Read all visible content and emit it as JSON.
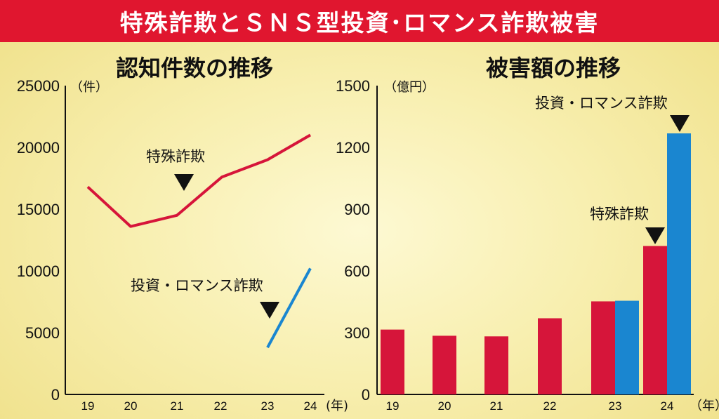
{
  "title": "特殊詐欺とＳＮＳ型投資･ロマンス詐欺被害",
  "chart_data": [
    {
      "type": "line",
      "title": "認知件数の推移",
      "y_unit": "（件）",
      "x_unit": "(年)",
      "x": [
        "19",
        "20",
        "21",
        "22",
        "23",
        "24"
      ],
      "ylim": [
        0,
        25000
      ],
      "yticks": [
        "25000",
        "20000",
        "15000",
        "10000",
        "5000",
        "0"
      ],
      "series": [
        {
          "name": "特殊詐欺",
          "color": "#d6153a",
          "values": [
            16800,
            13600,
            14500,
            17600,
            19000,
            21000
          ]
        },
        {
          "name": "投資・ロマンス詐欺",
          "color": "#1a86d0",
          "values": [
            null,
            null,
            null,
            null,
            3800,
            10200
          ]
        }
      ]
    },
    {
      "type": "bar",
      "title": "被害額の推移",
      "y_unit": "（億円）",
      "x_unit": "（年）",
      "categories": [
        "19",
        "20",
        "21",
        "22",
        "23",
        "24"
      ],
      "ylim": [
        0,
        1500
      ],
      "yticks": [
        "1500",
        "1200",
        "900",
        "600",
        "300",
        "0"
      ],
      "series": [
        {
          "name": "特殊詐欺",
          "color": "#d6153a",
          "values": [
            315,
            285,
            282,
            370,
            452,
            721
          ]
        },
        {
          "name": "投資・ロマンス詐欺",
          "color": "#1a86d0",
          "values": [
            null,
            null,
            null,
            null,
            455,
            1268
          ]
        }
      ]
    }
  ]
}
